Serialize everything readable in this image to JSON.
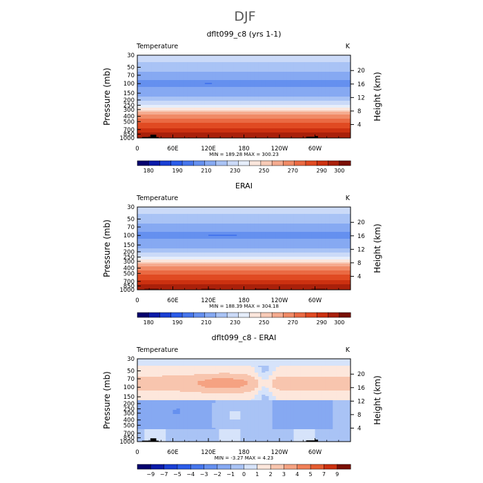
{
  "figure_title": "DJF",
  "chart_data": [
    {
      "type": "contour",
      "title": "dflt099_c8 (yrs 1-1)",
      "variable": "Temperature",
      "units": "K",
      "ylabel": "Pressure (mb)",
      "y2label": "Height (km)",
      "x_ticks": [
        "0",
        "60E",
        "120E",
        "180",
        "120W",
        "60W"
      ],
      "x_tick_lon": [
        0,
        60,
        120,
        180,
        240,
        300
      ],
      "xlim": [
        0,
        360
      ],
      "p_ticks": [
        "30",
        "50",
        "70",
        "100",
        "150",
        "200",
        "250",
        "300",
        "400",
        "500",
        "700",
        "850",
        "1000"
      ],
      "p_tick_values": [
        30,
        50,
        70,
        100,
        150,
        200,
        250,
        300,
        400,
        500,
        700,
        850,
        1000
      ],
      "ylim": [
        30,
        1000
      ],
      "z_ticks": [
        "4",
        "8",
        "12",
        "16",
        "20"
      ],
      "z_tick_values": [
        4,
        8,
        12,
        16,
        20
      ],
      "stats": "MIN = 189.28   MAX = 300.23",
      "colorbar_labels": [
        "180",
        "190",
        "210",
        "230",
        "250",
        "270",
        "290",
        "300"
      ],
      "colorbar_colors": [
        "#04006e",
        "#0a1ba8",
        "#1a3fd4",
        "#2b5ce8",
        "#4676ec",
        "#6590ef",
        "#86a9f2",
        "#a9c3f5",
        "#cbdaf8",
        "#e6eefb",
        "#fbe6dc",
        "#f8cbb7",
        "#f5ab8f",
        "#f08a66",
        "#ea6a43",
        "#e04a22",
        "#cc3110",
        "#a9200a",
        "#7a1004"
      ],
      "field": "temperature",
      "temp_profile": [
        [
          30,
          218
        ],
        [
          50,
          213
        ],
        [
          70,
          208
        ],
        [
          100,
          203
        ],
        [
          150,
          208
        ],
        [
          200,
          213
        ],
        [
          250,
          221
        ],
        [
          300,
          229
        ],
        [
          400,
          244
        ],
        [
          500,
          256
        ],
        [
          700,
          274
        ],
        [
          850,
          282
        ],
        [
          1000,
          289
        ]
      ],
      "cold_core": {
        "lon_center": 122,
        "lon_halfwidth": 8,
        "p_center": 100
      },
      "surface_blocks": [
        {
          "lon_start": 8,
          "lon_end": 36,
          "p_top": 960
        },
        {
          "lon_start": 22,
          "lon_end": 32,
          "p_top": 870
        },
        {
          "lon_start": 285,
          "lon_end": 305,
          "p_top": 950
        },
        {
          "lon_start": 86,
          "lon_end": 88,
          "p_top": 980
        },
        {
          "lon_start": 300,
          "lon_end": 305,
          "p_top": 920
        }
      ]
    },
    {
      "type": "contour",
      "title": "ERAI",
      "variable": "Temperature",
      "units": "K",
      "ylabel": "Pressure (mb)",
      "y2label": "Height (km)",
      "x_ticks": [
        "0",
        "60E",
        "120E",
        "180",
        "120W",
        "60W"
      ],
      "x_tick_lon": [
        0,
        60,
        120,
        180,
        240,
        300
      ],
      "xlim": [
        0,
        360
      ],
      "p_ticks": [
        "30",
        "50",
        "70",
        "100",
        "150",
        "200",
        "250",
        "300",
        "400",
        "500",
        "700",
        "850",
        "1000"
      ],
      "p_tick_values": [
        30,
        50,
        70,
        100,
        150,
        200,
        250,
        300,
        400,
        500,
        700,
        850,
        1000
      ],
      "ylim": [
        30,
        1000
      ],
      "z_ticks": [
        "4",
        "8",
        "12",
        "16",
        "20"
      ],
      "z_tick_values": [
        4,
        8,
        12,
        16,
        20
      ],
      "stats": "MIN = 188.39   MAX = 304.18",
      "colorbar_labels": [
        "180",
        "190",
        "210",
        "230",
        "250",
        "270",
        "290",
        "300"
      ],
      "colorbar_colors": [
        "#04006e",
        "#0a1ba8",
        "#1a3fd4",
        "#2b5ce8",
        "#4676ec",
        "#6590ef",
        "#86a9f2",
        "#a9c3f5",
        "#cbdaf8",
        "#e6eefb",
        "#fbe6dc",
        "#f8cbb7",
        "#f5ab8f",
        "#f08a66",
        "#ea6a43",
        "#e04a22",
        "#cc3110",
        "#a9200a",
        "#7a1004"
      ],
      "field": "temperature",
      "temp_profile": [
        [
          30,
          218
        ],
        [
          50,
          213
        ],
        [
          70,
          208
        ],
        [
          100,
          203
        ],
        [
          150,
          208
        ],
        [
          200,
          213
        ],
        [
          250,
          221
        ],
        [
          300,
          229
        ],
        [
          400,
          244
        ],
        [
          500,
          256
        ],
        [
          700,
          274
        ],
        [
          850,
          282
        ],
        [
          1000,
          290
        ]
      ],
      "cold_core": {
        "lon_center": 145,
        "lon_halfwidth": 32,
        "p_center": 100
      },
      "surface_blocks": []
    },
    {
      "type": "contour",
      "title": "dflt099_c8 - ERAI",
      "variable": "Temperature",
      "units": "K",
      "ylabel": "Pressure (mb)",
      "y2label": "Height (km)",
      "x_ticks": [
        "0",
        "60E",
        "120E",
        "180",
        "120W",
        "60W"
      ],
      "x_tick_lon": [
        0,
        60,
        120,
        180,
        240,
        300
      ],
      "xlim": [
        0,
        360
      ],
      "p_ticks": [
        "30",
        "50",
        "70",
        "100",
        "150",
        "200",
        "250",
        "300",
        "400",
        "500",
        "700",
        "850",
        "1000"
      ],
      "p_tick_values": [
        30,
        50,
        70,
        100,
        150,
        200,
        250,
        300,
        400,
        500,
        700,
        850,
        1000
      ],
      "ylim": [
        30,
        1000
      ],
      "z_ticks": [
        "4",
        "8",
        "12",
        "16",
        "20"
      ],
      "z_tick_values": [
        4,
        8,
        12,
        16,
        20
      ],
      "stats": "MIN =   -3.27   MAX =     4.23",
      "colorbar_labels": [
        "−9",
        "−7",
        "−5",
        "−4",
        "−3",
        "−2",
        "−1",
        "0",
        "1",
        "2",
        "3",
        "4",
        "5",
        "7",
        "9"
      ],
      "colorbar_colors": [
        "#04006e",
        "#0a1ba8",
        "#1a3fd4",
        "#2b5ce8",
        "#4676ec",
        "#6590ef",
        "#86a9f2",
        "#a9c3f5",
        "#d6e3fa",
        "#fde7dc",
        "#f8c5ae",
        "#f5a282",
        "#f08058",
        "#e45c30",
        "#cc3110",
        "#7a1004"
      ],
      "field": "difference",
      "diff_color_index": {
        "-3": 5,
        "-2": 6,
        "-1": 7,
        "0": 8,
        "1": 9,
        "2": 10,
        "3": 11,
        "4": 12
      },
      "surface_blocks": [
        {
          "lon_start": 8,
          "lon_end": 36,
          "p_top": 960
        },
        {
          "lon_start": 22,
          "lon_end": 32,
          "p_top": 870
        },
        {
          "lon_start": 285,
          "lon_end": 305,
          "p_top": 950
        },
        {
          "lon_start": 86,
          "lon_end": 88,
          "p_top": 980
        },
        {
          "lon_start": 300,
          "lon_end": 305,
          "p_top": 920
        }
      ]
    }
  ]
}
